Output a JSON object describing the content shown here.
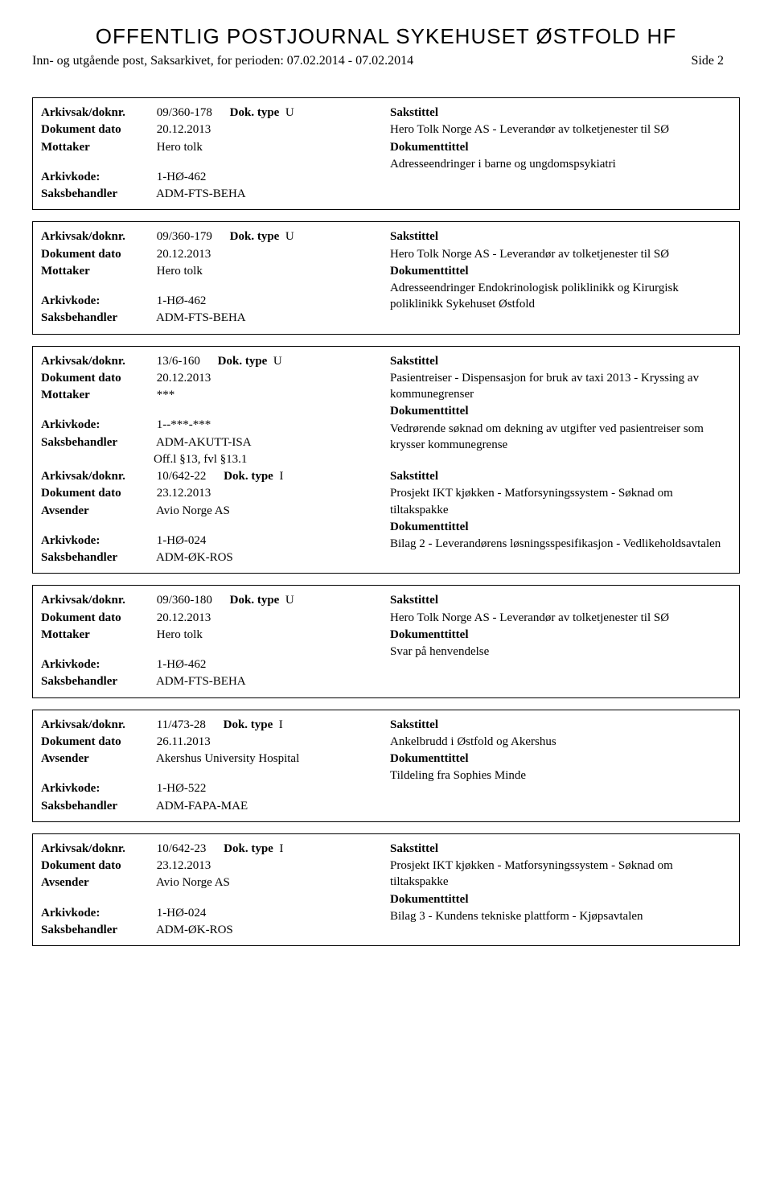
{
  "page": {
    "title": "OFFENTLIG POSTJOURNAL SYKEHUSET ØSTFOLD HF",
    "subtitle_left": "Inn- og utgående post, Saksarkivet, for perioden: 07.02.2014 - 07.02.2014",
    "subtitle_right": "Side 2"
  },
  "labels": {
    "arkivsak_doknr": "Arkivsak/doknr.",
    "dokument_dato": "Dokument dato",
    "mottaker": "Mottaker",
    "avsender": "Avsender",
    "arkivkode": "Arkivkode:",
    "saksbehandler": "Saksbehandler",
    "dok_type": "Dok. type",
    "sakstittel": "Sakstittel",
    "dokumenttittel": "Dokumenttittel"
  },
  "records": [
    {
      "multi": false,
      "doknr": "09/360-178",
      "doktype": "U",
      "dato": "20.12.2013",
      "party_label": "Mottaker",
      "party": "Hero tolk",
      "arkivkode": "1-HØ-462",
      "saksbehandler": "ADM-FTS-BEHA",
      "off": "",
      "sakstittel": "Hero Tolk Norge AS - Leverandør av tolketjenester til SØ",
      "dokumenttittel": "Adresseendringer i barne og ungdomspsykiatri"
    },
    {
      "multi": false,
      "doknr": "09/360-179",
      "doktype": "U",
      "dato": "20.12.2013",
      "party_label": "Mottaker",
      "party": "Hero tolk",
      "arkivkode": "1-HØ-462",
      "saksbehandler": "ADM-FTS-BEHA",
      "off": "",
      "sakstittel": "Hero Tolk Norge AS - Leverandør av tolketjenester til SØ",
      "dokumenttittel": "Adresseendringer Endokrinologisk poliklinikk og Kirurgisk poliklinikk Sykehuset Østfold"
    },
    {
      "multi": true,
      "a": {
        "doknr": "13/6-160",
        "doktype": "U",
        "dato": "20.12.2013",
        "party_label": "Mottaker",
        "party": "***",
        "arkivkode": "1--***-***",
        "saksbehandler": "ADM-AKUTT-ISA",
        "off": "Off.l §13, fvl §13.1",
        "sakstittel": "Pasientreiser - Dispensasjon for bruk av taxi 2013 - Kryssing av kommunegrenser",
        "dokumenttittel": "Vedrørende søknad om dekning av utgifter ved pasientreiser som krysser kommunegrense"
      },
      "b": {
        "doknr": "10/642-22",
        "doktype": "I",
        "dato": "23.12.2013",
        "party_label": "Avsender",
        "party": "Avio Norge AS",
        "arkivkode": "1-HØ-024",
        "saksbehandler": "ADM-ØK-ROS",
        "off": "",
        "sakstittel": "Prosjekt IKT kjøkken - Matforsyningssystem - Søknad om tiltakspakke",
        "dokumenttittel": "Bilag 2 - Leverandørens løsningsspesifikasjon - Vedlikeholdsavtalen"
      }
    },
    {
      "multi": false,
      "doknr": "09/360-180",
      "doktype": "U",
      "dato": "20.12.2013",
      "party_label": "Mottaker",
      "party": "Hero tolk",
      "arkivkode": "1-HØ-462",
      "saksbehandler": "ADM-FTS-BEHA",
      "off": "",
      "sakstittel": "Hero Tolk Norge AS - Leverandør av tolketjenester til SØ",
      "dokumenttittel": "Svar på henvendelse"
    },
    {
      "multi": false,
      "doknr": "11/473-28",
      "doktype": "I",
      "dato": "26.11.2013",
      "party_label": "Avsender",
      "party": "Akershus University Hospital",
      "arkivkode": "1-HØ-522",
      "saksbehandler": "ADM-FAPA-MAE",
      "off": "",
      "sakstittel": "Ankelbrudd i Østfold og Akershus",
      "dokumenttittel": "Tildeling fra Sophies Minde"
    },
    {
      "multi": false,
      "doknr": "10/642-23",
      "doktype": "I",
      "dato": "23.12.2013",
      "party_label": "Avsender",
      "party": "Avio Norge AS",
      "arkivkode": "1-HØ-024",
      "saksbehandler": "ADM-ØK-ROS",
      "off": "",
      "sakstittel": "Prosjekt IKT kjøkken - Matforsyningssystem - Søknad om tiltakspakke",
      "dokumenttittel": "Bilag 3 - Kundens tekniske plattform - Kjøpsavtalen"
    }
  ]
}
